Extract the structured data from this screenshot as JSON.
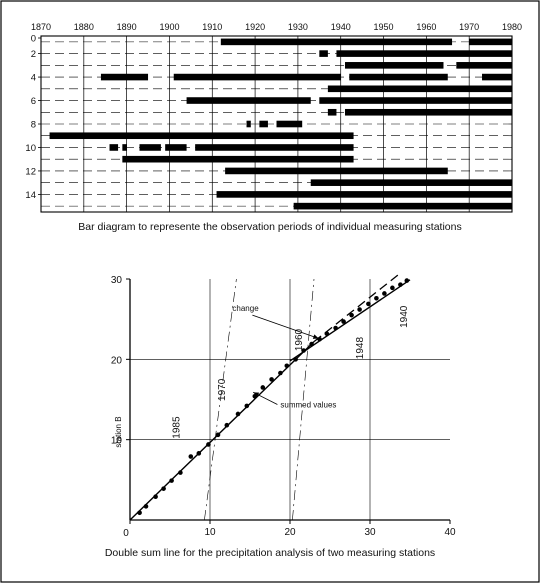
{
  "chart_data": [
    {
      "type": "bar",
      "caption": "Bar diagram to represente the observation periods of individual measuring stations",
      "x_ticks": [
        1870,
        1880,
        1890,
        1900,
        1910,
        1920,
        1930,
        1940,
        1950,
        1960,
        1970,
        1980
      ],
      "x_tick_labels": [
        "1870",
        "1880",
        "1890",
        "1900",
        "1910",
        "1920",
        "1930",
        "1940",
        "1950",
        "1960",
        "1970",
        "1980"
      ],
      "xlim": [
        1870,
        1980
      ],
      "y_tick_labels": [
        "0",
        "2",
        "4",
        "6",
        "8",
        "10",
        "12",
        "14"
      ],
      "y_tick_values": [
        0,
        2,
        4,
        6,
        8,
        10,
        12,
        14
      ],
      "stations": [
        {
          "station": 1,
          "periods": [
            [
              1912,
              1966
            ],
            [
              1970,
              1980
            ]
          ]
        },
        {
          "station": 2,
          "periods": [
            [
              1935,
              1937
            ],
            [
              1939,
              1980
            ]
          ]
        },
        {
          "station": 3,
          "periods": [
            [
              1941,
              1964
            ],
            [
              1967,
              1980
            ]
          ]
        },
        {
          "station": 4,
          "periods": [
            [
              1884,
              1895
            ],
            [
              1901,
              1940
            ],
            [
              1942,
              1965
            ],
            [
              1973,
              1980
            ]
          ]
        },
        {
          "station": 5,
          "periods": [
            [
              1937,
              1980
            ]
          ]
        },
        {
          "station": 6,
          "periods": [
            [
              1904,
              1933
            ],
            [
              1935,
              1980
            ]
          ]
        },
        {
          "station": 7,
          "periods": [
            [
              1937,
              1939
            ],
            [
              1941,
              1980
            ]
          ]
        },
        {
          "station": 8,
          "periods": [
            [
              1918,
              1919
            ],
            [
              1921,
              1923
            ],
            [
              1925,
              1931
            ]
          ]
        },
        {
          "station": 9,
          "periods": [
            [
              1872,
              1943
            ]
          ]
        },
        {
          "station": 10,
          "periods": [
            [
              1886,
              1888
            ],
            [
              1889,
              1890
            ],
            [
              1893,
              1898
            ],
            [
              1899,
              1904
            ],
            [
              1906,
              1943
            ]
          ]
        },
        {
          "station": 11,
          "periods": [
            [
              1889,
              1943
            ]
          ]
        },
        {
          "station": 12,
          "periods": [
            [
              1913,
              1965
            ]
          ]
        },
        {
          "station": 13,
          "periods": [
            [
              1933,
              1980
            ]
          ]
        },
        {
          "station": 14,
          "periods": [
            [
              1911,
              1980
            ]
          ]
        },
        {
          "station": 15,
          "periods": [
            [
              1929,
              1980
            ]
          ]
        }
      ]
    },
    {
      "type": "line",
      "caption": "Double sum line for the precipitation analysis of two measuring stations",
      "xlabel": "",
      "ylabel": "station B",
      "xlim": [
        0,
        40
      ],
      "ylim": [
        0,
        30
      ],
      "x_ticks": [
        0,
        10,
        20,
        30,
        40
      ],
      "x_tick_labels": [
        "0",
        "10",
        "20",
        "30",
        "40"
      ],
      "y_ticks": [
        10,
        20,
        30
      ],
      "y_tick_labels": [
        "10",
        "20",
        "30"
      ],
      "origin_label": "0",
      "series": [
        {
          "name": "summed values",
          "x": [
            1.2,
            2.0,
            3.2,
            4.2,
            5.2,
            6.3,
            7.6,
            8.6,
            9.8,
            11.0,
            12.1,
            13.5,
            14.6,
            15.6,
            16.6,
            17.7,
            18.8,
            19.6,
            20.7,
            21.7,
            22.7,
            23.7,
            24.6,
            25.7,
            26.7,
            27.7,
            28.7,
            29.8,
            30.8,
            31.8,
            32.8,
            33.8,
            34.6
          ],
          "y": [
            0.9,
            1.7,
            2.9,
            3.9,
            4.9,
            5.9,
            7.9,
            8.3,
            9.4,
            10.6,
            11.8,
            13.2,
            14.2,
            15.4,
            16.5,
            17.5,
            18.3,
            19.2,
            20.0,
            21.1,
            21.9,
            22.5,
            23.2,
            23.9,
            24.7,
            25.5,
            26.2,
            26.9,
            27.6,
            28.2,
            28.9,
            29.3,
            29.8
          ]
        }
      ],
      "fitted_segments": [
        {
          "x": [
            0,
            23.0
          ],
          "y": [
            0,
            22.2
          ]
        },
        {
          "x": [
            20.0,
            35.0
          ],
          "y": [
            19.8,
            29.9
          ]
        }
      ],
      "extrapolation": {
        "x": [
          23.0,
          33.5
        ],
        "y": [
          22.2,
          30.5
        ]
      },
      "reference_lines": [
        {
          "x": [
            9.3,
            13.3
          ],
          "y": [
            0,
            30
          ]
        },
        {
          "x": [
            20.3,
            23.0
          ],
          "y": [
            0,
            30
          ]
        }
      ],
      "year_labels": [
        {
          "text": "1985",
          "x": 6.2,
          "y": 11.5
        },
        {
          "text": "1970",
          "x": 11.9,
          "y": 16.2
        },
        {
          "text": "1960",
          "x": 21.5,
          "y": 22.4
        },
        {
          "text": "1948",
          "x": 29.1,
          "y": 21.4
        },
        {
          "text": "1940",
          "x": 34.6,
          "y": 25.3
        }
      ],
      "annotations": [
        {
          "text": "change",
          "x": 12.8,
          "y": 26.0,
          "arrow_to": [
            23.6,
            22.6
          ]
        },
        {
          "text": "summed values",
          "x": 18.8,
          "y": 14.0,
          "arrow_to": [
            15.4,
            15.9
          ]
        }
      ]
    }
  ]
}
